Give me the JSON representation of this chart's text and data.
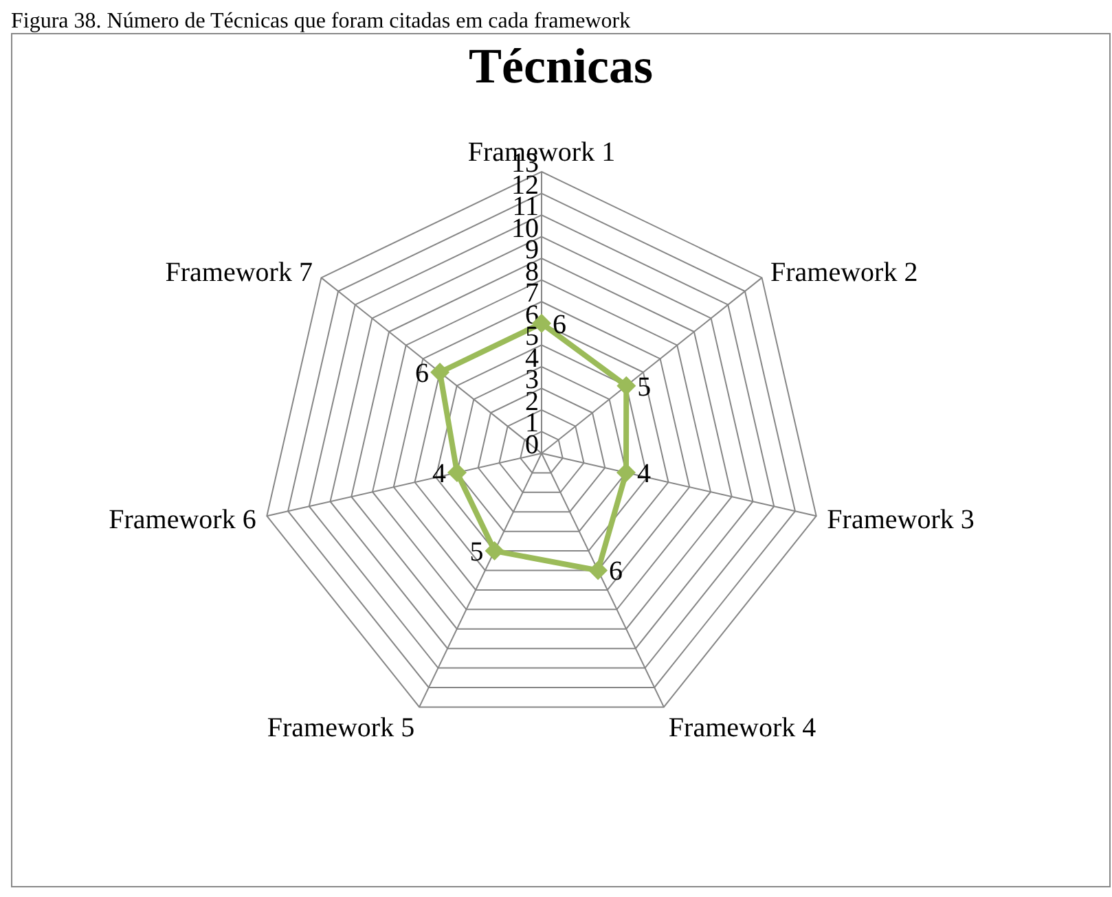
{
  "chart_data": {
    "type": "radar",
    "title": "Técnicas",
    "annotations": [
      "Figura 38. Número de Técnicas que foram citadas em cada framework"
    ],
    "categories": [
      "Framework 1",
      "Framework 2",
      "Framework 3",
      "Framework 4",
      "Framework 5",
      "Framework 6",
      "Framework 7"
    ],
    "series": [
      {
        "color": "#9bbb59",
        "values": [
          6,
          5,
          4,
          6,
          5,
          4,
          6
        ]
      }
    ],
    "ylim": [
      0,
      13
    ],
    "yticks": [
      0,
      1,
      2,
      3,
      4,
      5,
      6,
      7,
      8,
      9,
      10,
      11,
      12,
      13
    ],
    "grid": true,
    "marker": "diamond",
    "data_labels": true,
    "legend": false
  }
}
